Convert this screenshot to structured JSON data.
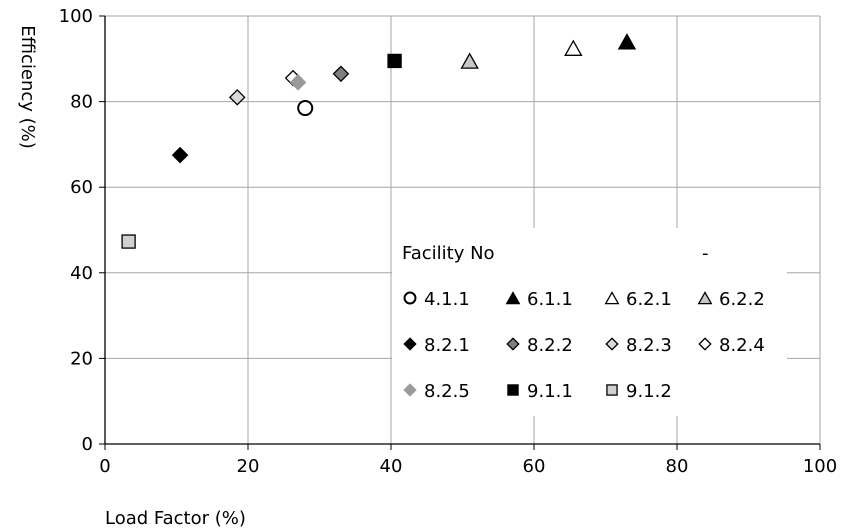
{
  "chart_data": {
    "type": "scatter",
    "xlabel": "Load Factor (%)",
    "ylabel": "Efficiency (%)",
    "xlim": [
      0,
      100
    ],
    "ylim": [
      0,
      100
    ],
    "x_ticks": [
      0,
      20,
      40,
      60,
      80,
      100
    ],
    "y_ticks": [
      0,
      20,
      40,
      60,
      80,
      100
    ],
    "x_tick_labels": [
      "0",
      "20",
      "40",
      "60",
      "80",
      "100"
    ],
    "y_tick_labels": [
      "0",
      "20",
      "40",
      "60",
      "80",
      "100"
    ],
    "grid": true,
    "legend": {
      "title": "Facility No",
      "extra_mark": "-",
      "placement": "bottom-right",
      "columns": 4
    },
    "series": [
      {
        "name": "4.1.1",
        "marker": "circle",
        "fill": "#ffffff",
        "stroke": "#000000",
        "points": [
          [
            28,
            78.5
          ]
        ]
      },
      {
        "name": "6.1.1",
        "marker": "triangle",
        "fill": "#000000",
        "stroke": "#000000",
        "points": [
          [
            73,
            94
          ]
        ]
      },
      {
        "name": "6.2.1",
        "marker": "triangle",
        "fill": "#ffffff",
        "stroke": "#000000",
        "points": [
          [
            65.5,
            92.5
          ]
        ]
      },
      {
        "name": "6.2.2",
        "marker": "triangle",
        "fill": "#c8c8c8",
        "stroke": "#000000",
        "points": [
          [
            51,
            89.5
          ]
        ]
      },
      {
        "name": "8.2.1",
        "marker": "diamond",
        "fill": "#000000",
        "stroke": "#000000",
        "points": [
          [
            10.5,
            67.5
          ]
        ]
      },
      {
        "name": "8.2.2",
        "marker": "diamond",
        "fill": "#7f7f7f",
        "stroke": "#000000",
        "points": [
          [
            33,
            86.5
          ]
        ]
      },
      {
        "name": "8.2.3",
        "marker": "diamond",
        "fill": "#d9d9d9",
        "stroke": "#000000",
        "points": [
          [
            18.5,
            81
          ]
        ]
      },
      {
        "name": "8.2.4",
        "marker": "diamond",
        "fill": "#ffffff",
        "stroke": "#000000",
        "points": [
          [
            26.3,
            85.5
          ]
        ]
      },
      {
        "name": "8.2.5",
        "marker": "diamond",
        "fill": "#9a9a9a",
        "stroke": "#9a9a9a",
        "points": [
          [
            27,
            84.5
          ]
        ]
      },
      {
        "name": "9.1.1",
        "marker": "square",
        "fill": "#000000",
        "stroke": "#000000",
        "points": [
          [
            40.5,
            89.5
          ]
        ]
      },
      {
        "name": "9.1.2",
        "marker": "square",
        "fill": "#d0d0d0",
        "stroke": "#000000",
        "points": [
          [
            3.3,
            47.3
          ]
        ]
      }
    ]
  }
}
